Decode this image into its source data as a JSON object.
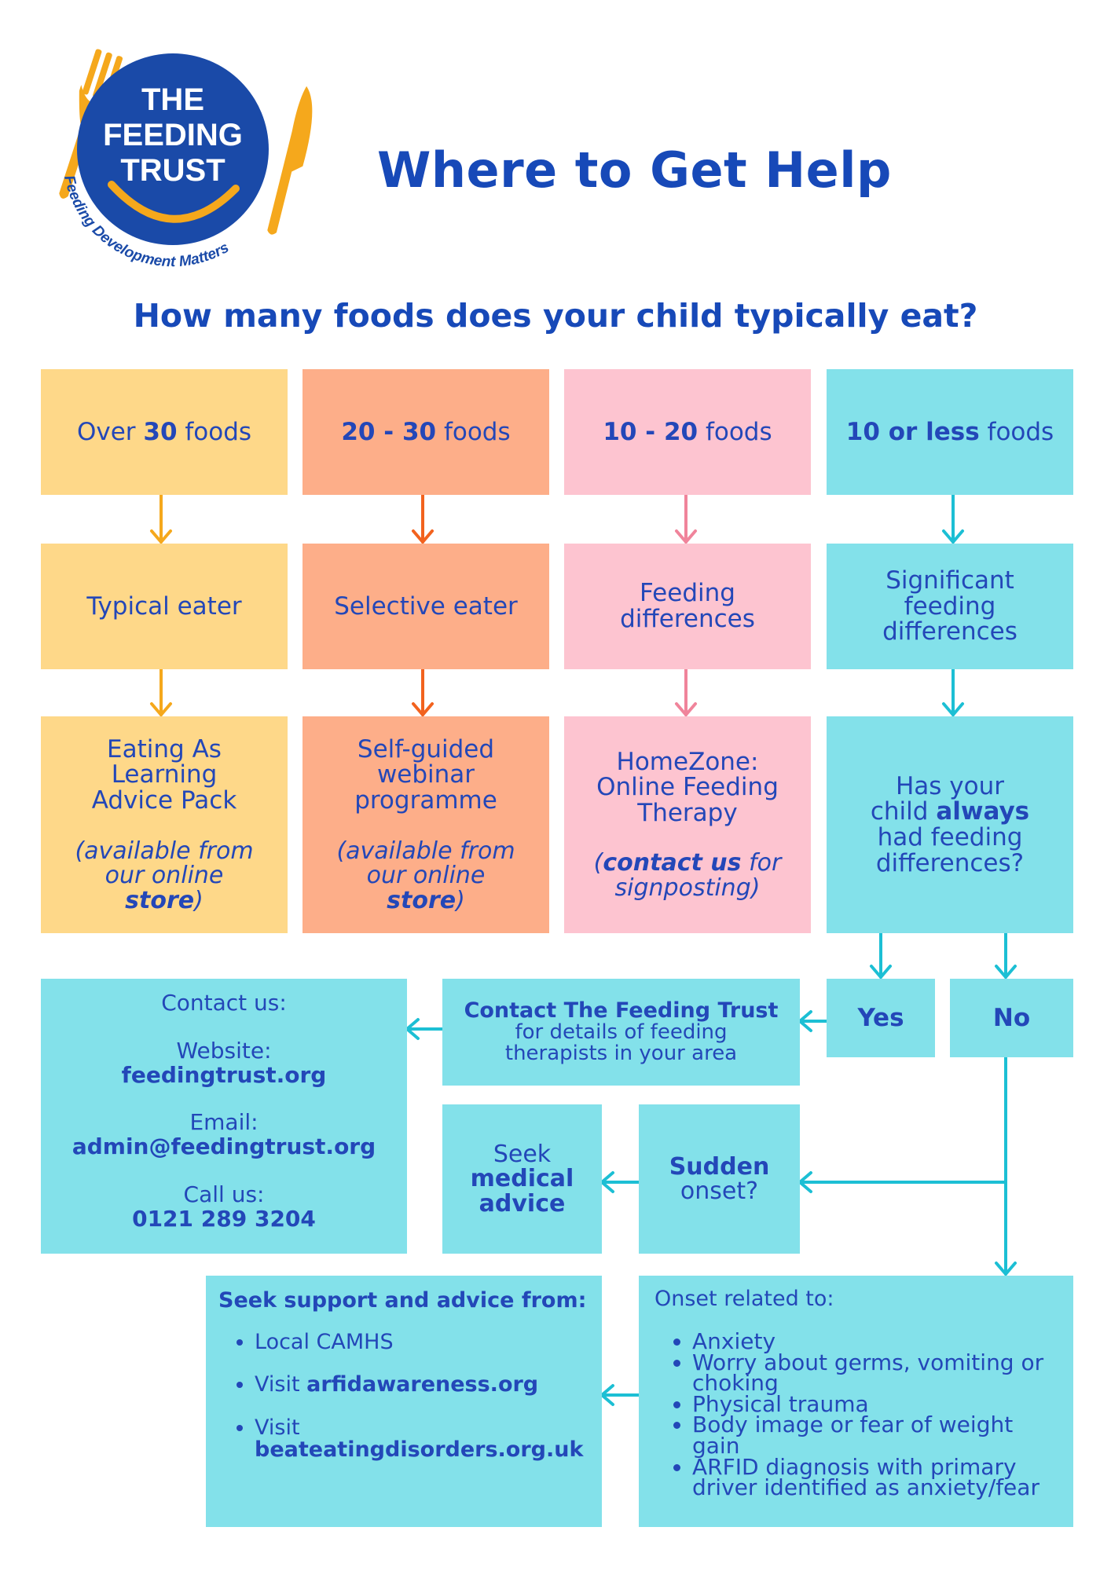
{
  "logo": {
    "line1": "THE",
    "line2": "FEEDING",
    "line3": "TRUST",
    "tagline": "Feeding Development Matters"
  },
  "title": "Where to Get Help",
  "question": "How many foods does your child typically eat?",
  "colors": {
    "yellow": "#fed889",
    "orange": "#fdae89",
    "pink": "#fdc4d0",
    "cyan": "#83e1ea",
    "blue": "#1749b8",
    "gold": "#f5a81c"
  },
  "columns": [
    {
      "count_pre": "Over ",
      "count_bold": "30",
      "count_post": " foods",
      "category": "Typical eater",
      "resource": "Eating As Learning Advice Pack",
      "note_pre": "(available from our online ",
      "note_bold": "store",
      "note_post": ")"
    },
    {
      "count_pre": "",
      "count_bold": "20 - 30",
      "count_post": " foods",
      "category": "Selective eater",
      "resource": "Self-guided webinar programme",
      "note_pre": "(available from our online ",
      "note_bold": "store",
      "note_post": ")"
    },
    {
      "count_pre": "",
      "count_bold": "10 - 20",
      "count_post": " foods",
      "category": "Feeding differences",
      "resource": "HomeZone: Online Feeding Therapy",
      "note_pre": "(",
      "note_bold": "contact us",
      "note_post": " for signposting)"
    },
    {
      "count_pre": "",
      "count_bold": "10 or less",
      "count_post": " foods",
      "category": "Significant feeding differences",
      "question_pre": "Has your child ",
      "question_bold": "always",
      "question_post": " had feeding differences?"
    }
  ],
  "yes": "Yes",
  "no": "No",
  "contact_trust": {
    "bold": "Contact The Feeding Trust",
    "text": "for details of feeding therapists in your area"
  },
  "contact_us": {
    "heading": "Contact us:",
    "website_label": "Website:",
    "website": "feedingtrust.org",
    "email_label": "Email:",
    "email": "admin@feedingtrust.org",
    "call_label": "Call us:",
    "phone": "0121 289 3204"
  },
  "seek_medical": {
    "pre": "Seek",
    "bold": "medical advice"
  },
  "sudden": {
    "bold": "Sudden",
    "text": "onset?"
  },
  "support": {
    "heading": "Seek support and advice from:",
    "item1": "Local CAMHS",
    "item2_pre": "Visit ",
    "item2_bold": "arfidawareness.org",
    "item3_pre": "Visit ",
    "item3_bold": "beateatingdisorders.org.uk"
  },
  "onset": {
    "heading": "Onset related to:",
    "items": [
      "Anxiety",
      "Worry about germs, vomiting or choking",
      "Physical trauma",
      "Body image or fear of weight gain",
      "ARFID diagnosis with primary driver identified as anxiety/fear"
    ]
  }
}
